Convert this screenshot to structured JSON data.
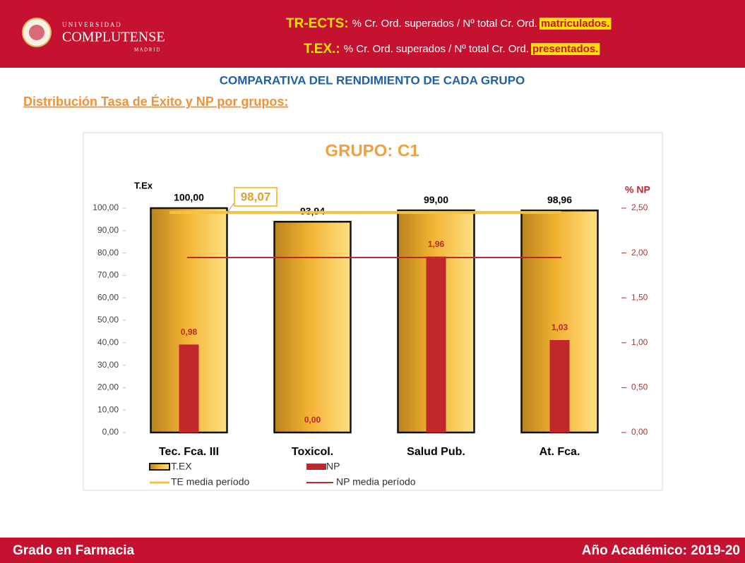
{
  "header": {
    "logo": {
      "top": "U N I V E R S I D A D",
      "name": "COMPLUTENSE",
      "bottom": "M A D R I D"
    },
    "line1": {
      "term": "TR-ECTS:",
      "text": "% Cr. Ord. superados / Nº total Cr. Ord.",
      "highlight": "matriculados."
    },
    "line2": {
      "term": "T.EX.:",
      "text": "% Cr. Ord. superados / Nº total Cr. Ord.",
      "highlight": "presentados."
    }
  },
  "heading": "COMPARATIVA DEL RENDIMIENTO DE CADA GRUPO",
  "subheading": "Distribución Tasa de Éxito y NP por grupos:",
  "chart_data": {
    "type": "bar",
    "title": "GRUPO: C1",
    "categories": [
      "Tec. Fca. III",
      "Toxicol.",
      "Salud Pub.",
      "At. Fca."
    ],
    "series": [
      {
        "name": "T.EX",
        "color": "#f2b233",
        "values": [
          100,
          93.94,
          99,
          98.96
        ],
        "value_labels": [
          "100,00",
          "93,94",
          "99,00",
          "98,96"
        ]
      },
      {
        "name": "NP",
        "color": "#c0282d",
        "axis": "y2",
        "values": [
          0.98,
          0,
          1.96,
          1.03
        ],
        "value_labels": [
          "0,98",
          "0,00",
          "1,96",
          "1,03"
        ]
      }
    ],
    "reference_lines": [
      {
        "name": "TE media período",
        "color": "#f5c242",
        "value": 98.07,
        "value_label": "98,07"
      },
      {
        "name": "NP media período",
        "color": "#c0282d",
        "axis": "y2",
        "value": 1.95
      }
    ],
    "ylabel": "T.Ex",
    "y2label": "% NP",
    "ylim": [
      0,
      100
    ],
    "yticks": [
      {
        "value": 0,
        "label": "0,00"
      },
      {
        "value": 10,
        "label": "10,00"
      },
      {
        "value": 20,
        "label": "20,00"
      },
      {
        "value": 30,
        "label": "30,00"
      },
      {
        "value": 40,
        "label": "40,00"
      },
      {
        "value": 50,
        "label": "50,00"
      },
      {
        "value": 60,
        "label": "60,00"
      },
      {
        "value": 70,
        "label": "70,00"
      },
      {
        "value": 80,
        "label": "80,00"
      },
      {
        "value": 90,
        "label": "90,00"
      },
      {
        "value": 100,
        "label": "100,00"
      }
    ],
    "y2lim": [
      0,
      2.5
    ],
    "y2ticks": [
      {
        "value": 0,
        "label": "0,00"
      },
      {
        "value": 0.5,
        "label": "0,50"
      },
      {
        "value": 1,
        "label": "1,00"
      },
      {
        "value": 1.5,
        "label": "1,50"
      },
      {
        "value": 2,
        "label": "2,00"
      },
      {
        "value": 2.5,
        "label": "2,50"
      }
    ]
  },
  "footer": {
    "left": "Grado en Farmacia",
    "right": "Año Académico: 2019-20"
  }
}
